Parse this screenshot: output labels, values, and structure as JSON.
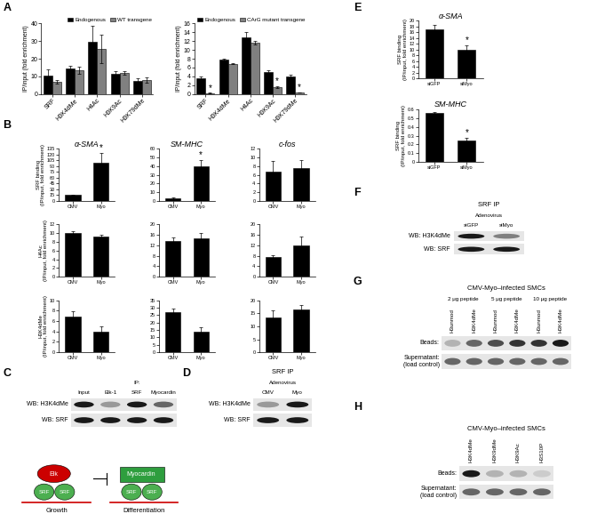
{
  "panel_labels": [
    "A",
    "B",
    "C",
    "D",
    "E",
    "F",
    "G",
    "H"
  ],
  "chart_data": [
    {
      "panel": "A",
      "type": "bar",
      "categories": [
        "SRF",
        "H3K4dMe",
        "H4Ac",
        "H3K9Ac",
        "H3K79dMe"
      ],
      "series": [
        {
          "name": "Endogenous",
          "color": "#000000",
          "values": [
            10.5,
            14.5,
            29.5,
            11.5,
            7.5
          ],
          "errors": [
            3.5,
            1.5,
            9,
            1.5,
            1.5
          ]
        },
        {
          "name": "WT transgene",
          "color": "#808080",
          "values": [
            7,
            13.5,
            25.5,
            12,
            8
          ],
          "errors": [
            1,
            2,
            8,
            1,
            1.5
          ]
        }
      ],
      "ylabel": "IP/input (fold enrichment)",
      "ylim": [
        0,
        40
      ],
      "yticks": [
        0,
        10,
        20,
        30,
        40
      ],
      "legend": "upper right"
    },
    {
      "panel": "A",
      "type": "bar",
      "categories": [
        "SRF",
        "H3K4dMe",
        "H4Ac",
        "H3K9Ac",
        "H3K79dMe"
      ],
      "series": [
        {
          "name": "Endogenous",
          "color": "#000000",
          "values": [
            3.5,
            7.8,
            12.8,
            5,
            4
          ],
          "errors": [
            0.5,
            0.3,
            1.2,
            0.3,
            0.3
          ]
        },
        {
          "name": "CArG mutant transgene",
          "color": "#808080",
          "values": [
            0.2,
            6.8,
            11.7,
            1.5,
            0.3
          ],
          "errors": [
            0.05,
            0.1,
            0.4,
            0.2,
            0.05
          ],
          "significance": [
            "*",
            null,
            null,
            "*",
            "*"
          ]
        }
      ],
      "ylabel": "IP/input (fold enrichment)",
      "ylim": [
        0,
        16
      ],
      "yticks": [
        0,
        2,
        4,
        6,
        8,
        10,
        12,
        14,
        16
      ],
      "legend": "upper right"
    },
    {
      "panel": "B",
      "type": "bar",
      "title": "α-SMA",
      "ylabel": "SRF binding\n(IP/input, fold enrichment)",
      "categories": [
        "CMV",
        "Myo"
      ],
      "color": "#000000",
      "values": [
        15,
        100
      ],
      "errors": [
        2,
        25
      ],
      "significance": [
        null,
        "*"
      ],
      "ylim": [
        0,
        135
      ],
      "yticks": [
        0,
        15,
        30,
        45,
        60,
        75,
        90,
        105,
        120,
        135
      ]
    },
    {
      "panel": "B",
      "type": "bar",
      "title": "SM-MHC",
      "categories": [
        "CMV",
        "Myo"
      ],
      "color": "#000000",
      "values": [
        3,
        40
      ],
      "errors": [
        1,
        7
      ],
      "significance": [
        null,
        "*"
      ],
      "ylim": [
        0,
        60
      ],
      "yticks": [
        0,
        10,
        20,
        30,
        40,
        50,
        60
      ]
    },
    {
      "panel": "B",
      "type": "bar",
      "title": "c-fos",
      "categories": [
        "CMV",
        "Myo"
      ],
      "color": "#000000",
      "values": [
        6.7,
        7.5
      ],
      "errors": [
        2.5,
        2
      ],
      "ylim": [
        0,
        12
      ],
      "yticks": [
        0,
        2,
        4,
        6,
        8,
        10,
        12
      ]
    },
    {
      "panel": "B",
      "type": "bar",
      "ylabel": "H4Ac\n(IP/input, fold enrichment)",
      "categories": [
        "CMV",
        "Myo"
      ],
      "color": "#000000",
      "values": [
        10,
        9.2
      ],
      "errors": [
        0.4,
        0.5
      ],
      "ylim": [
        0,
        12
      ],
      "yticks": [
        0,
        2,
        4,
        6,
        8,
        10,
        12
      ]
    },
    {
      "panel": "B",
      "type": "bar",
      "categories": [
        "CMV",
        "Myo"
      ],
      "color": "#000000",
      "values": [
        13.5,
        14.7
      ],
      "errors": [
        1.5,
        2
      ],
      "ylim": [
        0,
        20
      ],
      "yticks": [
        0,
        4,
        8,
        12,
        16,
        20
      ]
    },
    {
      "panel": "B",
      "type": "bar",
      "categories": [
        "CMV",
        "Myo"
      ],
      "color": "#000000",
      "values": [
        7.5,
        12
      ],
      "errors": [
        0.7,
        3.5
      ],
      "ylim": [
        0,
        20
      ],
      "yticks": [
        0,
        4,
        8,
        12,
        16,
        20
      ]
    },
    {
      "panel": "B",
      "type": "bar",
      "ylabel": "H3K4dMe\n(IP/input, fold enrichment)",
      "categories": [
        "CMV",
        "Myo"
      ],
      "color": "#000000",
      "values": [
        6.8,
        4
      ],
      "errors": [
        1,
        1
      ],
      "ylim": [
        0,
        10
      ],
      "yticks": [
        0,
        2,
        4,
        6,
        8,
        10
      ]
    },
    {
      "panel": "B",
      "type": "bar",
      "categories": [
        "CMV",
        "Myo"
      ],
      "color": "#000000",
      "values": [
        27,
        14
      ],
      "errors": [
        2.5,
        3
      ],
      "ylim": [
        0,
        35
      ],
      "yticks": [
        0,
        5,
        10,
        15,
        20,
        25,
        30,
        35
      ]
    },
    {
      "panel": "B",
      "type": "bar",
      "categories": [
        "CMV",
        "Myo"
      ],
      "color": "#000000",
      "values": [
        13.5,
        16.5
      ],
      "errors": [
        2.5,
        1.5
      ],
      "ylim": [
        0,
        20
      ],
      "yticks": [
        0,
        5,
        10,
        15,
        20
      ]
    },
    {
      "panel": "E",
      "type": "bar",
      "title": "α-SMA",
      "ylabel": "SRF binding\n(IP/input, fold enrichment)",
      "categories": [
        "siGFP",
        "siMyo"
      ],
      "color": "#000000",
      "values": [
        17,
        10
      ],
      "errors": [
        1.5,
        1.5
      ],
      "significance": [
        null,
        "*"
      ],
      "ylim": [
        0,
        20
      ],
      "yticks": [
        0,
        2,
        4,
        6,
        8,
        10,
        12,
        14,
        16,
        18,
        20
      ]
    },
    {
      "panel": "E",
      "type": "bar",
      "title": "SM-MHC",
      "ylabel": "SRF binding\n(IP/input, fold enrichment)",
      "categories": [
        "siGFP",
        "siMyo"
      ],
      "color": "#000000",
      "values": [
        0.56,
        0.24
      ],
      "errors": [
        0.01,
        0.04
      ],
      "significance": [
        null,
        "*"
      ],
      "ylim": [
        0,
        0.6
      ],
      "yticks": [
        0,
        0.1,
        0.2,
        0.3,
        0.4,
        0.5,
        0.6
      ]
    }
  ],
  "blots": [
    {
      "panel": "C",
      "lanes": [
        "Input",
        {
          "label": "IP:",
          "lanes": [
            "Elk-1",
            "SRF",
            "Myocardin"
          ]
        }
      ],
      "rows": [
        {
          "label": "WB: H3K4dMe",
          "bands": [
            0.9,
            0.4,
            0.9,
            0.6
          ]
        },
        {
          "label": "WB: SRF",
          "bands": [
            0.9,
            0.9,
            0.9,
            0.9
          ]
        }
      ],
      "cartoon": {
        "left": {
          "top": "Elk",
          "bottom": [
            "SRF",
            "SRF"
          ],
          "label": "Growth"
        },
        "right": {
          "top": "Myocardin",
          "bottom": [
            "SRF",
            "SRF"
          ],
          "label": "Differentiation"
        }
      }
    },
    {
      "panel": "D",
      "title": "SRF IP",
      "lanes": [
        {
          "label": "Adenovirus",
          "lanes": [
            "CMV",
            "Myo"
          ]
        }
      ],
      "rows": [
        {
          "label": "WB: H3K4dMe",
          "bands": [
            0.4,
            0.9
          ]
        },
        {
          "label": "WB: SRF",
          "bands": [
            0.9,
            0.9
          ]
        }
      ]
    },
    {
      "panel": "F",
      "title": "SRF IP",
      "lanes": [
        {
          "label": "Adenovirus",
          "lanes": [
            "siGFP",
            "siMyo"
          ]
        }
      ],
      "rows": [
        {
          "label": "WB: H3K4dMe",
          "bands": [
            0.9,
            0.5
          ]
        },
        {
          "label": "WB: SRF",
          "bands": [
            0.9,
            0.9
          ]
        }
      ]
    },
    {
      "panel": "G",
      "title": "CMV-Myo–infected SMCs",
      "lanes": [
        {
          "label": "2 μg peptide",
          "lanes": [
            "H3unmod",
            "H3K4dMe"
          ]
        },
        {
          "label": "5 μg peptide",
          "lanes": [
            "H3unmod",
            "H3K4dMe"
          ]
        },
        {
          "label": "10 μg peptide",
          "lanes": [
            "H3unmod",
            "H3K4dMe"
          ]
        }
      ],
      "rows": [
        {
          "label": "Beads:",
          "bands": [
            0.3,
            0.6,
            0.7,
            0.8,
            0.8,
            0.9
          ]
        },
        {
          "label": "Supernatant:\n(load control)",
          "bands": [
            0.6,
            0.6,
            0.6,
            0.6,
            0.6,
            0.6
          ]
        }
      ]
    },
    {
      "panel": "H",
      "title": "CMV-Myo–infected SMCs",
      "lanes": [
        "H3K4dMe",
        "H3K9dMe",
        "H3K9Ac",
        "H3S10P"
      ],
      "rows": [
        {
          "label": "Beads:",
          "bands": [
            0.9,
            0.3,
            0.3,
            0.2
          ]
        },
        {
          "label": "Supernatant:\n(load control)",
          "bands": [
            0.6,
            0.6,
            0.6,
            0.6
          ]
        }
      ]
    }
  ]
}
